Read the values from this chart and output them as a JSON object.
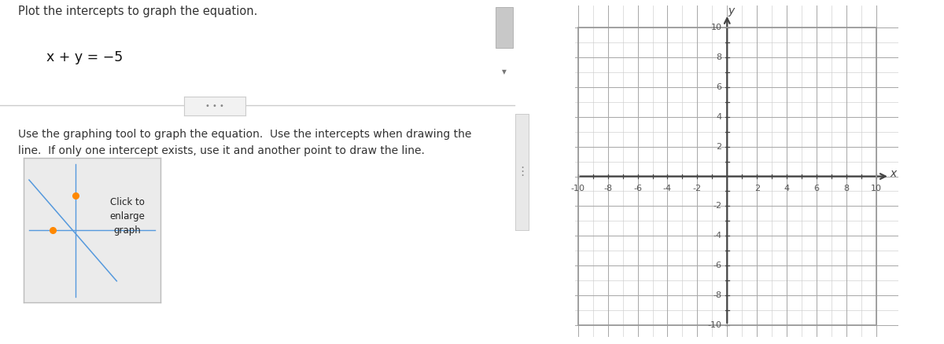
{
  "title_text": "Plot the intercepts to graph the equation.",
  "equation_parts": [
    "x + y = −5"
  ],
  "instruction_line1": "Use the graphing tool to graph the equation.  Use the intercepts when drawing the",
  "instruction_line2": "line.  If only one intercept exists, use it and another point to draw the line.",
  "button_label": "Click to\nenlarge\ngraph",
  "grid_min": -10,
  "grid_max": 10,
  "axis_label_x": "x",
  "axis_label_y": "y",
  "graph_bg": "#ffffff",
  "grid_color_minor": "#cccccc",
  "grid_color_major": "#aaaaaa",
  "axis_color": "#444444",
  "left_bg": "#ffffff",
  "title_color": "#333333",
  "instruction_color": "#333333",
  "equation_color": "#111111",
  "button_bg_top": "#f0f0f0",
  "button_bg_bot": "#d8d8d8",
  "button_border": "#bbbbbb",
  "intercept_color": "#ff8800",
  "line_color": "#5599dd",
  "scrollbar_bg": "#d0d0d0",
  "scrollbar_handle": "#b0b0b0",
  "divider_color": "#cccccc",
  "dots_pill_bg": "#f2f2f2",
  "dots_pill_border": "#cccccc",
  "tick_label_color": "#555555",
  "neg_y_labels": [
    "-2",
    "-4",
    "-6",
    "-8",
    "-10"
  ],
  "pos_y_labels": [
    "2",
    "4",
    "6",
    "8",
    "10"
  ],
  "neg_x_labels": [
    "-10",
    "-8",
    "-6",
    "-4",
    "-2"
  ],
  "pos_x_labels": [
    "2",
    "4",
    "6",
    "8",
    "10"
  ]
}
